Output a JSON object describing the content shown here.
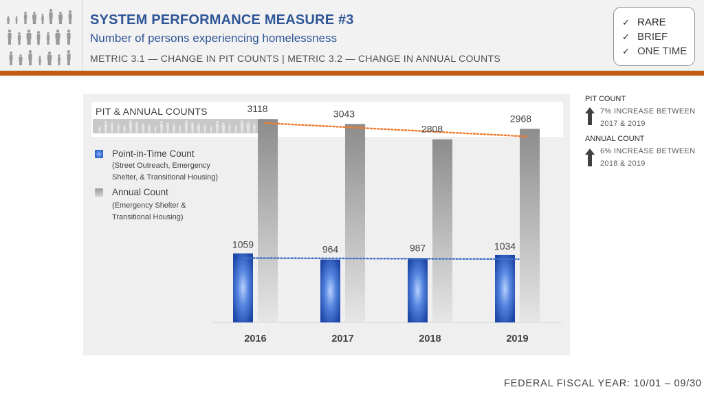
{
  "header": {
    "title": "SYSTEM PERFORMANCE MEASURE #3",
    "subtitle": "Number of persons experiencing homelessness",
    "metric_line": "METRIC 3.1 — CHANGE IN PIT COUNTS | METRIC 3.2 — CHANGE IN ANNUAL COUNTS",
    "logo_icon": "people-group-icon"
  },
  "checklist": [
    "RARE",
    "BRIEF",
    "ONE TIME"
  ],
  "colors": {
    "title_blue": "#2e5597",
    "accent_orange": "#c55a11",
    "pit_blue": "#2d62cf",
    "annual_gray": "#a6a6a6",
    "trend_orange": "#ed7d31",
    "trend_blue": "#4472c4"
  },
  "notes": {
    "pit": {
      "head": "PIT COUNT",
      "text_line1": "7% INCREASE BETWEEN",
      "text_line2": "2017 & 2019"
    },
    "annual": {
      "head": "ANNUAL COUNT",
      "text_line1": "6% INCREASE BETWEEN",
      "text_line2": "2018 & 2019"
    }
  },
  "legend": {
    "pit_label": "Point-in-Time Count",
    "pit_sub_line1": "(Street Outreach, Emergency",
    "pit_sub_line2": "Shelter, & Transitional Housing)",
    "annual_label": "Annual Count",
    "annual_sub_line1": "(Emergency Shelter &",
    "annual_sub_line2": "Transitional Housing)"
  },
  "footer": {
    "fiscal_year": "FEDERAL FISCAL YEAR:  10/01 – 09/30"
  },
  "chart_data": {
    "type": "bar",
    "title": "PIT & ANNUAL COUNTS",
    "categories": [
      "2016",
      "2017",
      "2018",
      "2019"
    ],
    "series": [
      {
        "name": "Point-in-Time Count",
        "values": [
          1059,
          964,
          987,
          1034
        ]
      },
      {
        "name": "Annual Count",
        "values": [
          3118,
          3043,
          2808,
          2968
        ]
      }
    ],
    "trendlines": [
      "Point-in-Time Count",
      "Annual Count"
    ],
    "ylim": [
      0,
      3500
    ],
    "xlabel": "",
    "ylabel": "",
    "grid": false,
    "legend": "left"
  }
}
